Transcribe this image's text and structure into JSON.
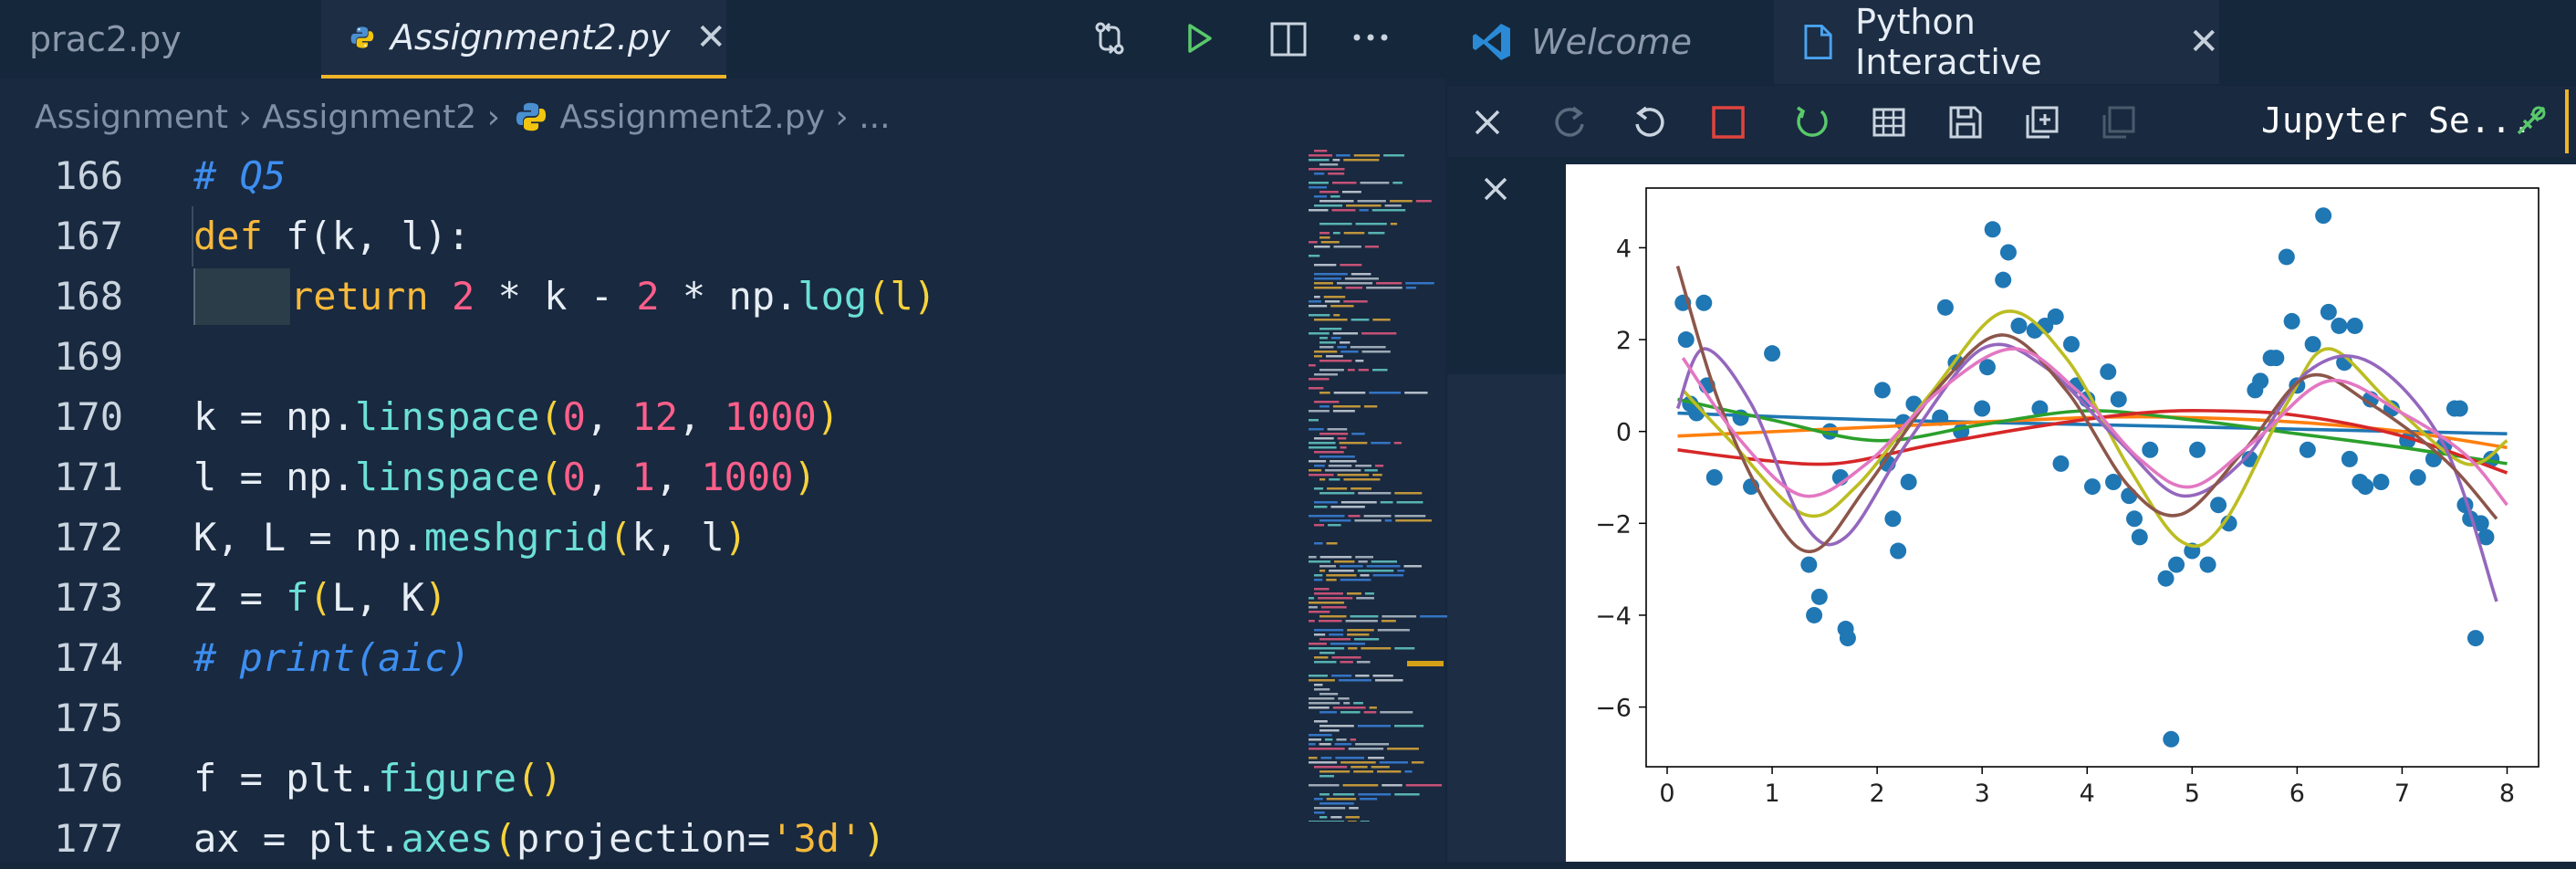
{
  "editor": {
    "tabs": [
      {
        "label": "prac2.py",
        "active": false
      },
      {
        "label": "Assignment2.py",
        "active": true
      }
    ],
    "breadcrumb": [
      "Assignment",
      "Assignment2",
      "Assignment2.py",
      "..."
    ],
    "toolbar_icons": [
      "open-changes-icon",
      "run-icon",
      "split-editor-icon",
      "more-icon"
    ],
    "lines": [
      {
        "num": "166"
      },
      {
        "num": "167"
      },
      {
        "num": "168"
      },
      {
        "num": "169"
      },
      {
        "num": "170"
      },
      {
        "num": "171"
      },
      {
        "num": "172"
      },
      {
        "num": "173"
      },
      {
        "num": "174"
      },
      {
        "num": "175"
      },
      {
        "num": "176"
      },
      {
        "num": "177"
      }
    ],
    "code": {
      "l166": "# Q5",
      "l167_def": "def",
      "l167_rest": " f(k, l):",
      "l168_return": "return",
      "l168_2a": "2",
      "l168_k": " * k - ",
      "l168_2b": "2",
      "l168_np": " * np.",
      "l168_log": "log",
      "l168_arg": "(l)",
      "l170_a": "k = np.",
      "l170_fn": "linspace",
      "l170_0": "0",
      "l170_12": "12",
      "l170_1000": "1000",
      "l171_a": "l = np.",
      "l171_fn": "linspace",
      "l171_0": "0",
      "l171_1": "1",
      "l171_1000": "1000",
      "l172_a": "K, L = np.",
      "l172_fn": "meshgrid",
      "l172_args": "k, l",
      "l173_a": "Z = ",
      "l173_fn": "f",
      "l173_args": "L, K",
      "l174": "# print(aic)",
      "l176_a": "f = plt.",
      "l176_fn": "figure",
      "l176_p": "()",
      "l177_a": "ax = plt.",
      "l177_fn": "axes",
      "l177_b": "projection=",
      "l177_str": "'3d'"
    }
  },
  "interactive": {
    "tabs": [
      {
        "label": "Welcome",
        "active": false
      },
      {
        "label": "Python Interactive",
        "active": true
      }
    ],
    "kernel_label": "Jupyter Se...",
    "toolbar_icons": [
      "close-icon",
      "redo-icon",
      "undo-icon",
      "interrupt-icon",
      "restart-icon",
      "variables-icon",
      "save-icon",
      "export-icon",
      "copy-icon"
    ]
  },
  "chart_data": {
    "type": "scatter",
    "title": "",
    "xlabel": "",
    "ylabel": "",
    "xlim": [
      -0.2,
      8.3
    ],
    "ylim": [
      -7.3,
      5.3
    ],
    "x_ticks": [
      "0",
      "1",
      "2",
      "3",
      "4",
      "5",
      "6",
      "7",
      "8"
    ],
    "y_ticks": [
      "4",
      "2",
      "0",
      "−2",
      "−4",
      "−6"
    ],
    "colors": {
      "points": "#1f77b4",
      "blue": "#1f77b4",
      "orange": "#ff7f0e",
      "green": "#2ca02c",
      "red": "#d62728",
      "purple": "#9467bd",
      "brown": "#8c564b",
      "pink": "#e377c2",
      "olive": "#bcbd22"
    },
    "points": [
      [
        0.15,
        2.8
      ],
      [
        0.18,
        2.0
      ],
      [
        0.22,
        0.6
      ],
      [
        0.28,
        0.4
      ],
      [
        0.35,
        2.8
      ],
      [
        0.38,
        1.0
      ],
      [
        0.45,
        -1.0
      ],
      [
        0.7,
        0.3
      ],
      [
        0.8,
        -1.2
      ],
      [
        1.0,
        1.7
      ],
      [
        1.35,
        -2.9
      ],
      [
        1.4,
        -4.0
      ],
      [
        1.45,
        -3.6
      ],
      [
        1.55,
        0.0
      ],
      [
        1.65,
        -1.0
      ],
      [
        1.7,
        -4.3
      ],
      [
        1.72,
        -4.5
      ],
      [
        2.05,
        0.9
      ],
      [
        2.1,
        -0.7
      ],
      [
        2.15,
        -1.9
      ],
      [
        2.2,
        -2.6
      ],
      [
        2.25,
        0.2
      ],
      [
        2.3,
        -1.1
      ],
      [
        2.35,
        0.6
      ],
      [
        2.6,
        0.3
      ],
      [
        2.65,
        2.7
      ],
      [
        2.75,
        1.5
      ],
      [
        2.8,
        0.0
      ],
      [
        3.0,
        0.5
      ],
      [
        3.05,
        1.4
      ],
      [
        3.1,
        4.4
      ],
      [
        3.2,
        3.3
      ],
      [
        3.25,
        3.9
      ],
      [
        3.35,
        2.3
      ],
      [
        3.5,
        2.2
      ],
      [
        3.55,
        0.5
      ],
      [
        3.6,
        2.3
      ],
      [
        3.7,
        2.5
      ],
      [
        3.75,
        -0.7
      ],
      [
        3.85,
        1.9
      ],
      [
        3.9,
        1.0
      ],
      [
        4.0,
        0.7
      ],
      [
        4.05,
        -1.2
      ],
      [
        4.2,
        1.3
      ],
      [
        4.25,
        -1.1
      ],
      [
        4.3,
        0.7
      ],
      [
        4.4,
        -1.4
      ],
      [
        4.45,
        -1.9
      ],
      [
        4.5,
        -2.3
      ],
      [
        4.6,
        -0.4
      ],
      [
        4.75,
        -3.2
      ],
      [
        4.8,
        -6.7
      ],
      [
        4.85,
        -2.9
      ],
      [
        5.0,
        -2.6
      ],
      [
        5.05,
        -0.4
      ],
      [
        5.15,
        -2.9
      ],
      [
        5.25,
        -1.6
      ],
      [
        5.35,
        -2.0
      ],
      [
        5.55,
        -0.6
      ],
      [
        5.6,
        0.9
      ],
      [
        5.65,
        1.1
      ],
      [
        5.75,
        1.6
      ],
      [
        5.8,
        1.6
      ],
      [
        5.9,
        3.8
      ],
      [
        5.95,
        2.4
      ],
      [
        6.0,
        1.0
      ],
      [
        6.1,
        -0.4
      ],
      [
        6.15,
        1.9
      ],
      [
        6.25,
        4.7
      ],
      [
        6.3,
        2.6
      ],
      [
        6.4,
        2.3
      ],
      [
        6.45,
        1.5
      ],
      [
        6.5,
        -0.6
      ],
      [
        6.55,
        2.3
      ],
      [
        6.6,
        -1.1
      ],
      [
        6.65,
        -1.2
      ],
      [
        6.7,
        0.7
      ],
      [
        6.8,
        -1.1
      ],
      [
        6.9,
        0.5
      ],
      [
        7.05,
        -0.2
      ],
      [
        7.15,
        -1.0
      ],
      [
        7.3,
        -0.6
      ],
      [
        7.4,
        -0.3
      ],
      [
        7.5,
        0.5
      ],
      [
        7.55,
        0.5
      ],
      [
        7.6,
        -1.6
      ],
      [
        7.65,
        -1.9
      ],
      [
        7.7,
        -4.5
      ],
      [
        7.75,
        -2.0
      ],
      [
        7.8,
        -2.3
      ],
      [
        7.85,
        -0.6
      ]
    ],
    "curves": [
      {
        "color": "blue",
        "points": [
          [
            0.1,
            0.4
          ],
          [
            2,
            0.25
          ],
          [
            4,
            0.15
          ],
          [
            6,
            0.05
          ],
          [
            8,
            -0.05
          ]
        ]
      },
      {
        "color": "orange",
        "points": [
          [
            0.1,
            -0.1
          ],
          [
            2,
            0.1
          ],
          [
            4,
            0.3
          ],
          [
            5,
            0.3
          ],
          [
            6,
            0.2
          ],
          [
            7,
            0.0
          ],
          [
            8,
            -0.35
          ]
        ]
      },
      {
        "color": "green",
        "points": [
          [
            0.1,
            0.7
          ],
          [
            1,
            0.25
          ],
          [
            2,
            -0.2
          ],
          [
            3,
            0.15
          ],
          [
            4,
            0.45
          ],
          [
            5,
            0.25
          ],
          [
            6,
            -0.05
          ],
          [
            7,
            -0.35
          ],
          [
            8,
            -0.7
          ]
        ]
      },
      {
        "color": "red",
        "points": [
          [
            0.1,
            -0.4
          ],
          [
            0.8,
            -0.6
          ],
          [
            1.6,
            -0.7
          ],
          [
            2.5,
            -0.3
          ],
          [
            3.5,
            0.1
          ],
          [
            4.5,
            0.4
          ],
          [
            5.2,
            0.45
          ],
          [
            6,
            0.35
          ],
          [
            7,
            -0.1
          ],
          [
            8,
            -0.9
          ]
        ]
      },
      {
        "color": "olive",
        "points": [
          [
            0.15,
            0.9
          ],
          [
            0.6,
            -0.2
          ],
          [
            1.3,
            -1.8
          ],
          [
            1.8,
            -1.2
          ],
          [
            2.5,
            0.8
          ],
          [
            3.2,
            2.6
          ],
          [
            3.8,
            1.6
          ],
          [
            4.4,
            -0.8
          ],
          [
            4.9,
            -2.4
          ],
          [
            5.3,
            -2.0
          ],
          [
            5.9,
            0.6
          ],
          [
            6.3,
            1.8
          ],
          [
            6.9,
            0.6
          ],
          [
            7.6,
            -0.7
          ],
          [
            8,
            -0.2
          ]
        ]
      },
      {
        "color": "purple",
        "points": [
          [
            0.1,
            0.5
          ],
          [
            0.35,
            1.8
          ],
          [
            0.8,
            0.6
          ],
          [
            1.3,
            -2.0
          ],
          [
            1.7,
            -2.3
          ],
          [
            2.3,
            -0.2
          ],
          [
            3.0,
            1.8
          ],
          [
            3.6,
            1.4
          ],
          [
            4.3,
            -0.2
          ],
          [
            4.9,
            -1.4
          ],
          [
            5.5,
            -0.6
          ],
          [
            6.1,
            1.3
          ],
          [
            6.7,
            1.5
          ],
          [
            7.4,
            -0.3
          ],
          [
            7.9,
            -3.7
          ]
        ]
      },
      {
        "color": "brown",
        "points": [
          [
            0.1,
            3.6
          ],
          [
            0.5,
            0.6
          ],
          [
            1.0,
            -1.8
          ],
          [
            1.4,
            -2.6
          ],
          [
            1.9,
            -1.2
          ],
          [
            2.6,
            1.0
          ],
          [
            3.2,
            2.1
          ],
          [
            3.8,
            0.9
          ],
          [
            4.4,
            -1.2
          ],
          [
            4.9,
            -1.8
          ],
          [
            5.5,
            -0.4
          ],
          [
            6.1,
            1.2
          ],
          [
            6.7,
            0.6
          ],
          [
            7.4,
            -0.6
          ],
          [
            7.9,
            -1.9
          ]
        ]
      },
      {
        "color": "pink",
        "points": [
          [
            0.15,
            1.6
          ],
          [
            0.7,
            -0.2
          ],
          [
            1.3,
            -1.4
          ],
          [
            1.9,
            -0.7
          ],
          [
            2.6,
            0.9
          ],
          [
            3.3,
            1.8
          ],
          [
            3.9,
            0.9
          ],
          [
            4.5,
            -0.6
          ],
          [
            5.0,
            -1.2
          ],
          [
            5.6,
            -0.2
          ],
          [
            6.3,
            1.1
          ],
          [
            7.0,
            0.4
          ],
          [
            7.6,
            -0.5
          ],
          [
            8,
            -1.6
          ]
        ]
      }
    ]
  }
}
